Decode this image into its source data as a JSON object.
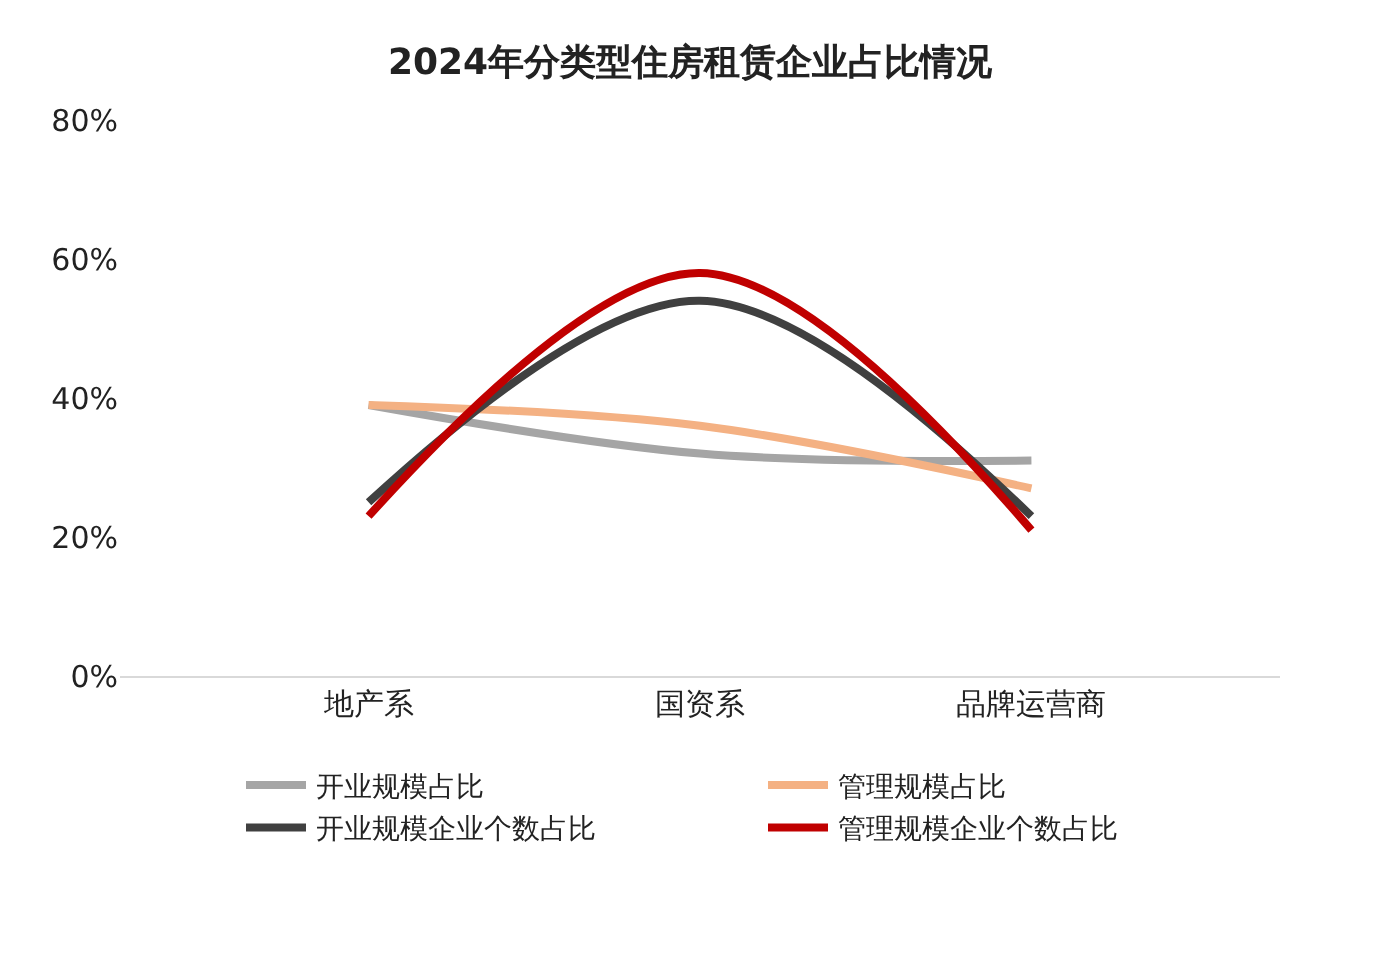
{
  "chart_data": {
    "type": "line",
    "title": "2024年分类型住房租赁企业占比情况",
    "categories": [
      "地产系",
      "国资系",
      "品牌运营商"
    ],
    "series": [
      {
        "name": "开业规模占比",
        "color": "#a5a5a5",
        "values": [
          39,
          32,
          31
        ]
      },
      {
        "name": "管理规模占比",
        "color": "#f4b183",
        "values": [
          39,
          36,
          27
        ]
      },
      {
        "name": "开业规模企业个数占比",
        "color": "#404040",
        "values": [
          25,
          54,
          23
        ]
      },
      {
        "name": "管理规模企业个数占比",
        "color": "#c00000",
        "values": [
          23,
          58,
          21
        ]
      }
    ],
    "ylim": [
      0,
      80
    ],
    "yticks": [
      {
        "value": 0,
        "label": "0%"
      },
      {
        "value": 20,
        "label": "20%"
      },
      {
        "value": 40,
        "label": "40%"
      },
      {
        "value": 60,
        "label": "60%"
      },
      {
        "value": 80,
        "label": "80%"
      }
    ],
    "legend": "bottom",
    "marker": "none",
    "line_style": "solid"
  }
}
